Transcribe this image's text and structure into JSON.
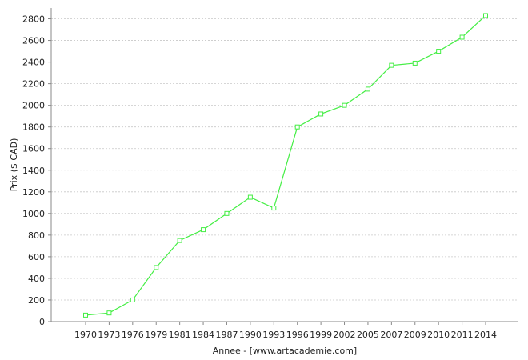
{
  "chart_data": {
    "type": "line",
    "title": "",
    "xlabel": "Annee - [www.artacademie.com]",
    "ylabel": "Prix ($ CAD)",
    "categories": [
      "1970",
      "1973",
      "1976",
      "1979",
      "1981",
      "1984",
      "1987",
      "1990",
      "1993",
      "1996",
      "1999",
      "2002",
      "2005",
      "2007",
      "2009",
      "2010",
      "2011",
      "2014"
    ],
    "series": [
      {
        "values": [
          60,
          80,
          200,
          500,
          750,
          850,
          1000,
          1150,
          1050,
          1800,
          1920,
          2000,
          2150,
          2370,
          2390,
          2500,
          2630,
          2830
        ]
      }
    ],
    "ylim": [
      0,
      2900
    ],
    "yticks": [
      0,
      200,
      400,
      600,
      800,
      1000,
      1200,
      1400,
      1600,
      1800,
      2000,
      2200,
      2400,
      2600,
      2800
    ],
    "grid": true,
    "colors": {
      "line": "#44ee44",
      "grid": "#c8c8c8",
      "axis": "#888888"
    }
  }
}
